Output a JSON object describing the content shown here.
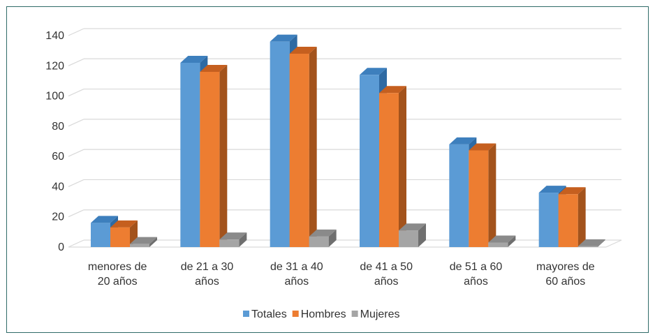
{
  "chart_data": {
    "type": "bar",
    "categories": [
      [
        "menores de",
        "20 años"
      ],
      [
        "de 21 a 30",
        "años"
      ],
      [
        "de 31 a 40",
        "años"
      ],
      [
        "de 41 a 50",
        "años"
      ],
      [
        "de 51 a 60",
        "años"
      ],
      [
        "mayores de",
        "60 años"
      ]
    ],
    "series": [
      {
        "name": "Totales",
        "values": [
          16,
          122,
          136,
          114,
          68,
          36
        ],
        "color": "#5b9bd5",
        "side": "#2e6aa3",
        "top": "#3d7fbd"
      },
      {
        "name": "Hombres",
        "values": [
          13,
          116,
          128,
          102,
          64,
          35
        ],
        "color": "#ed7d31",
        "side": "#a3531c",
        "top": "#c55f1f"
      },
      {
        "name": "Mujeres",
        "values": [
          2,
          5,
          7,
          11,
          3,
          0.5
        ],
        "color": "#a5a5a5",
        "side": "#6f6f6f",
        "top": "#8a8a8a"
      }
    ],
    "y_ticks": [
      0,
      20,
      40,
      60,
      80,
      100,
      120,
      140
    ],
    "ylim": [
      0,
      140
    ],
    "grid": true,
    "legend_position": "bottom",
    "style": "3d-column"
  }
}
